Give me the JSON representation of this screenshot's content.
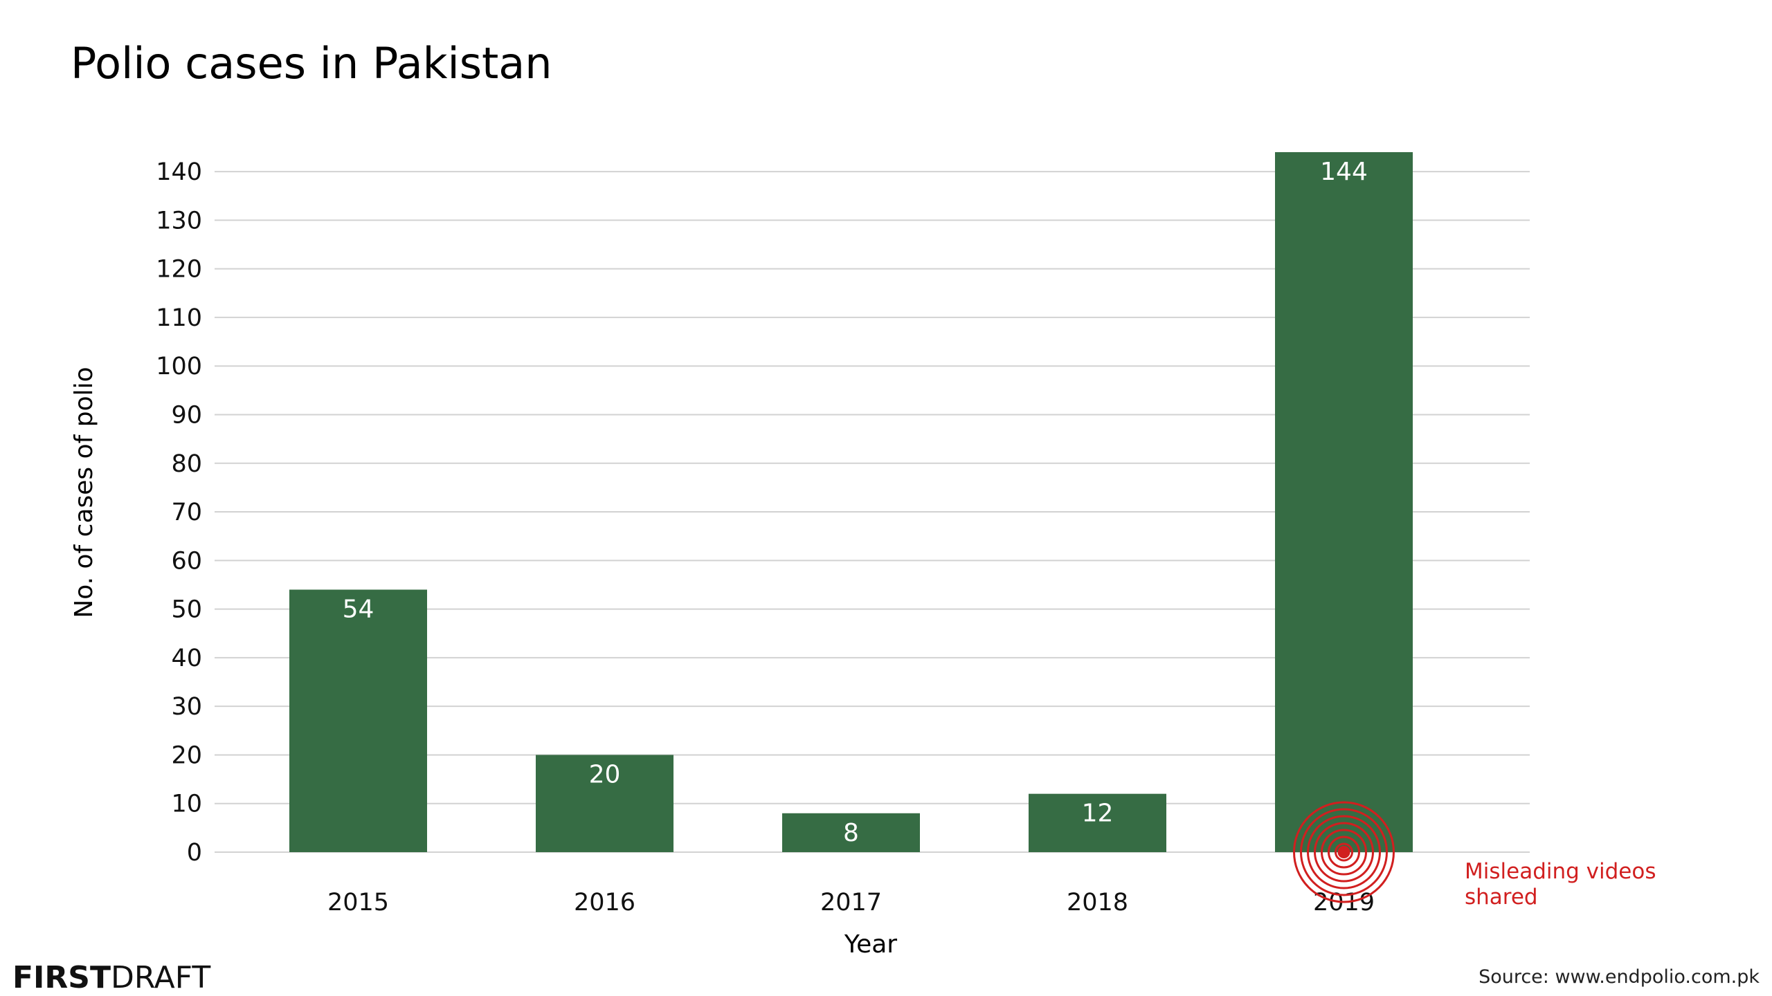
{
  "chart_data": {
    "type": "bar",
    "title": "Polio cases in Pakistan",
    "xlabel": "Year",
    "ylabel": "No. of cases of polio",
    "categories": [
      "2015",
      "2016",
      "2017",
      "2018",
      "2019"
    ],
    "values": [
      54,
      20,
      8,
      12,
      144
    ],
    "ylim": [
      0,
      140
    ],
    "yticks": [
      0,
      10,
      20,
      30,
      40,
      50,
      60,
      70,
      80,
      90,
      100,
      110,
      120,
      130,
      140
    ],
    "grid": true,
    "data_labels": [
      "54",
      "20",
      "8",
      "12",
      "144"
    ],
    "annotation": {
      "category": "2019",
      "text_line1": "Misleading videos",
      "text_line2": "shared"
    }
  },
  "colors": {
    "bar": "#366c44",
    "annotation": "#d11f1f",
    "grid": "#d2d2d2"
  },
  "footer": {
    "brand_bold": "FIRST",
    "brand_light": "DRAFT",
    "source": "Source: www.endpolio.com.pk"
  }
}
